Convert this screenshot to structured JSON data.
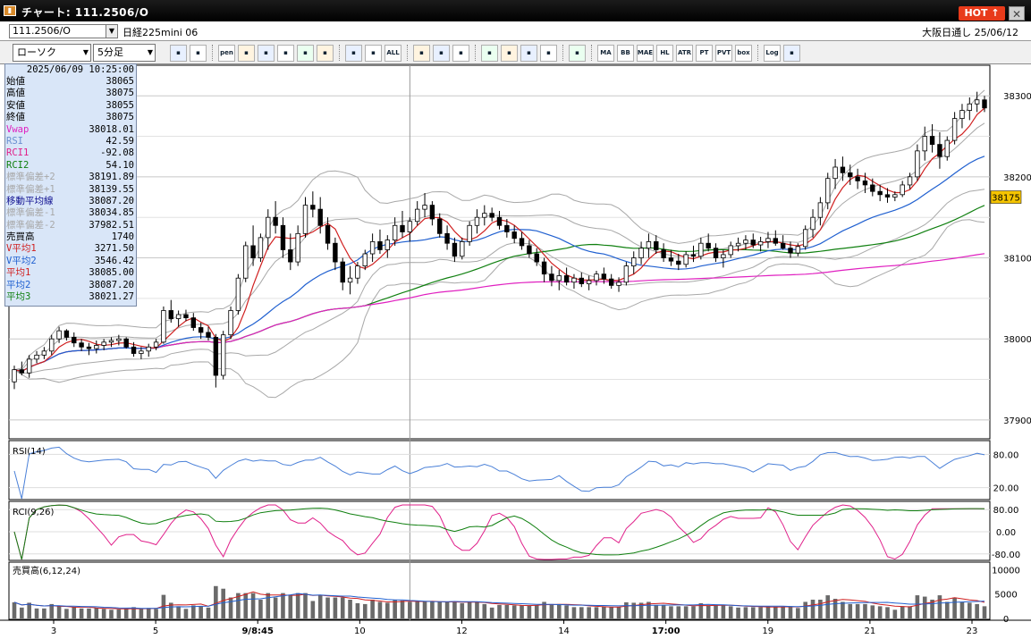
{
  "window": {
    "title": "チャート: 111.2506/O",
    "icon_name": "chart-app-icon",
    "hot_label": "HOT ↑",
    "close_label": "✕"
  },
  "info_bar": {
    "symbol": "111.2506/O",
    "instrument": "日経225mini 06",
    "session": "大阪日通し  25/06/12"
  },
  "toolbar": {
    "chart_type": "ローソク",
    "interval": "5分足",
    "buttons": [
      "zoom-in",
      "window",
      "pen",
      "pointer",
      "cursor",
      "undo",
      "notes",
      "trash",
      "candle-view",
      "bar-view",
      "ALL",
      "settings",
      "brush",
      "color",
      "download",
      "search",
      "grid",
      "chart-mode",
      "info",
      "MA",
      "BB",
      "MAE",
      "HL",
      "ATR",
      "PT",
      "PVT",
      "box",
      "Log",
      "export"
    ]
  },
  "data_window": {
    "datetime": "2025/06/09  10:25:00",
    "rows": [
      {
        "label": "始値",
        "value": "38065",
        "color": "#000000"
      },
      {
        "label": "高値",
        "value": "38075",
        "color": "#000000"
      },
      {
        "label": "安値",
        "value": "38055",
        "color": "#000000"
      },
      {
        "label": "終値",
        "value": "38075",
        "color": "#000000"
      },
      {
        "label": "Vwap",
        "value": "38018.01",
        "color": "#e020c0"
      },
      {
        "label": "RSI",
        "value": "42.59",
        "color": "#6a8fd0"
      },
      {
        "label": "RCI1",
        "value": "-92.08",
        "color": "#e0208a"
      },
      {
        "label": "RCI2",
        "value": "54.10",
        "color": "#108010"
      },
      {
        "label": "標準偏差+2",
        "value": "38191.89",
        "color": "#a8a8a8"
      },
      {
        "label": "標準偏差+1",
        "value": "38139.55",
        "color": "#a8a8a8"
      },
      {
        "label": "移動平均線",
        "value": "38087.20",
        "color": "#101090"
      },
      {
        "label": "標準偏差-1",
        "value": "38034.85",
        "color": "#a8a8a8"
      },
      {
        "label": "標準偏差-2",
        "value": "37982.51",
        "color": "#a8a8a8"
      },
      {
        "label": "売買高",
        "value": "1740",
        "color": "#000000"
      },
      {
        "label": "V平均1",
        "value": "3271.50",
        "color": "#d02020"
      },
      {
        "label": "V平均2",
        "value": "3546.42",
        "color": "#2060d0"
      },
      {
        "label": "平均1",
        "value": "38085.00",
        "color": "#d02020"
      },
      {
        "label": "平均2",
        "value": "38087.20",
        "color": "#2060d0"
      },
      {
        "label": "平均3",
        "value": "38021.27",
        "color": "#108010"
      }
    ]
  },
  "chart_data": [
    {
      "type": "candlestick",
      "title": "",
      "y_ticks": [
        38300,
        38200,
        38100,
        38000,
        37900
      ],
      "ylim": [
        37880,
        38330
      ],
      "last_price": "38175",
      "x_tick_labels": [
        "3",
        "5",
        "9/8:45",
        "10",
        "12",
        "14",
        "17:00",
        "19",
        "21",
        "23"
      ],
      "candles": [
        [
          37947,
          37967,
          37938,
          37962
        ],
        [
          37962,
          37972,
          37955,
          37958
        ],
        [
          37958,
          37980,
          37952,
          37975
        ],
        [
          37975,
          37985,
          37970,
          37980
        ],
        [
          37980,
          37990,
          37975,
          37985
        ],
        [
          37985,
          38005,
          37980,
          38000
        ],
        [
          38000,
          38015,
          37995,
          38010
        ],
        [
          38010,
          38012,
          37998,
          38002
        ],
        [
          38002,
          38008,
          37990,
          37995
        ],
        [
          37995,
          38000,
          37985,
          37990
        ],
        [
          37990,
          37995,
          37980,
          37988
        ],
        [
          37988,
          37998,
          37982,
          37992
        ],
        [
          37992,
          38000,
          37986,
          37996
        ],
        [
          37996,
          38002,
          37990,
          37998
        ],
        [
          37998,
          38005,
          37992,
          38000
        ],
        [
          38000,
          38002,
          37988,
          37990
        ],
        [
          37990,
          37996,
          37978,
          37982
        ],
        [
          37982,
          37990,
          37975,
          37985
        ],
        [
          37985,
          37994,
          37978,
          37990
        ],
        [
          37990,
          38000,
          37986,
          37996
        ],
        [
          37996,
          38040,
          37994,
          38035
        ],
        [
          38035,
          38048,
          38020,
          38025
        ],
        [
          38025,
          38035,
          38015,
          38030
        ],
        [
          38030,
          38036,
          38022,
          38026
        ],
        [
          38026,
          38032,
          38010,
          38014
        ],
        [
          38014,
          38020,
          38000,
          38008
        ],
        [
          38008,
          38015,
          37998,
          38002
        ],
        [
          38002,
          38006,
          37940,
          37955
        ],
        [
          37955,
          38010,
          37950,
          38005
        ],
        [
          38005,
          38040,
          38000,
          38035
        ],
        [
          38035,
          38080,
          38030,
          38075
        ],
        [
          38075,
          38120,
          38070,
          38115
        ],
        [
          38115,
          38140,
          38090,
          38100
        ],
        [
          38100,
          38130,
          38095,
          38125
        ],
        [
          38125,
          38160,
          38110,
          38150
        ],
        [
          38150,
          38170,
          38130,
          38140
        ],
        [
          38140,
          38150,
          38100,
          38110
        ],
        [
          38110,
          38130,
          38085,
          38095
        ],
        [
          38095,
          38140,
          38090,
          38130
        ],
        [
          38130,
          38175,
          38125,
          38165
        ],
        [
          38165,
          38182,
          38150,
          38160
        ],
        [
          38160,
          38175,
          38130,
          38140
        ],
        [
          38140,
          38150,
          38110,
          38118
        ],
        [
          38118,
          38125,
          38085,
          38095
        ],
        [
          38095,
          38100,
          38060,
          38070
        ],
        [
          38070,
          38090,
          38055,
          38075
        ],
        [
          38075,
          38095,
          38068,
          38090
        ],
        [
          38090,
          38110,
          38085,
          38105
        ],
        [
          38105,
          38130,
          38095,
          38120
        ],
        [
          38120,
          38135,
          38105,
          38110
        ],
        [
          38110,
          38128,
          38100,
          38122
        ],
        [
          38122,
          38150,
          38115,
          38140
        ],
        [
          38140,
          38158,
          38125,
          38132
        ],
        [
          38132,
          38150,
          38120,
          38145
        ],
        [
          38145,
          38170,
          38140,
          38160
        ],
        [
          38160,
          38180,
          38150,
          38165
        ],
        [
          38165,
          38170,
          38140,
          38148
        ],
        [
          38148,
          38155,
          38125,
          38130
        ],
        [
          38130,
          38140,
          38110,
          38118
        ],
        [
          38118,
          38125,
          38095,
          38102
        ],
        [
          38102,
          38125,
          38098,
          38120
        ],
        [
          38120,
          38145,
          38115,
          38140
        ],
        [
          38140,
          38160,
          38130,
          38150
        ],
        [
          38150,
          38165,
          38140,
          38155
        ],
        [
          38155,
          38162,
          38145,
          38150
        ],
        [
          38150,
          38158,
          38135,
          38140
        ],
        [
          38140,
          38148,
          38125,
          38132
        ],
        [
          38132,
          38140,
          38118,
          38124
        ],
        [
          38124,
          38132,
          38110,
          38115
        ],
        [
          38115,
          38122,
          38100,
          38105
        ],
        [
          38105,
          38112,
          38090,
          38095
        ],
        [
          38095,
          38100,
          38070,
          38080
        ],
        [
          38080,
          38090,
          38065,
          38072
        ],
        [
          38072,
          38085,
          38060,
          38078
        ],
        [
          38078,
          38088,
          38066,
          38070
        ],
        [
          38070,
          38080,
          38062,
          38075
        ],
        [
          38075,
          38082,
          38064,
          38068
        ],
        [
          38068,
          38078,
          38060,
          38072
        ],
        [
          38072,
          38084,
          38066,
          38080
        ],
        [
          38080,
          38088,
          38068,
          38074
        ],
        [
          38074,
          38080,
          38062,
          38066
        ],
        [
          38066,
          38076,
          38058,
          38070
        ],
        [
          38070,
          38095,
          38066,
          38090
        ],
        [
          38090,
          38108,
          38080,
          38100
        ],
        [
          38100,
          38120,
          38092,
          38112
        ],
        [
          38112,
          38130,
          38100,
          38120
        ],
        [
          38120,
          38128,
          38105,
          38110
        ],
        [
          38110,
          38118,
          38095,
          38100
        ],
        [
          38100,
          38110,
          38090,
          38096
        ],
        [
          38096,
          38105,
          38085,
          38092
        ],
        [
          38092,
          38108,
          38088,
          38104
        ],
        [
          38104,
          38115,
          38095,
          38102
        ],
        [
          38102,
          38125,
          38098,
          38118
        ],
        [
          38118,
          38130,
          38108,
          38112
        ],
        [
          38112,
          38118,
          38095,
          38100
        ],
        [
          38100,
          38110,
          38088,
          38104
        ],
        [
          38104,
          38120,
          38100,
          38115
        ],
        [
          38115,
          38125,
          38108,
          38118
        ],
        [
          38118,
          38128,
          38110,
          38122
        ],
        [
          38122,
          38130,
          38112,
          38116
        ],
        [
          38116,
          38126,
          38108,
          38120
        ],
        [
          38120,
          38132,
          38112,
          38124
        ],
        [
          38124,
          38134,
          38115,
          38118
        ],
        [
          38118,
          38128,
          38110,
          38112
        ],
        [
          38112,
          38120,
          38100,
          38106
        ],
        [
          38106,
          38118,
          38102,
          38114
        ],
        [
          38114,
          38140,
          38110,
          38135
        ],
        [
          38135,
          38160,
          38125,
          38150
        ],
        [
          38150,
          38175,
          38140,
          38168
        ],
        [
          38168,
          38205,
          38160,
          38198
        ],
        [
          38198,
          38222,
          38185,
          38212
        ],
        [
          38212,
          38225,
          38195,
          38205
        ],
        [
          38205,
          38215,
          38190,
          38200
        ],
        [
          38200,
          38210,
          38185,
          38195
        ],
        [
          38195,
          38205,
          38180,
          38190
        ],
        [
          38190,
          38198,
          38176,
          38182
        ],
        [
          38182,
          38190,
          38170,
          38178
        ],
        [
          38178,
          38186,
          38168,
          38175
        ],
        [
          38175,
          38182,
          38170,
          38178
        ],
        [
          38178,
          38195,
          38175,
          38190
        ],
        [
          38190,
          38205,
          38185,
          38200
        ],
        [
          38200,
          38240,
          38195,
          38232
        ],
        [
          38232,
          38262,
          38220,
          38250
        ],
        [
          38250,
          38265,
          38230,
          38240
        ],
        [
          38240,
          38255,
          38210,
          38225
        ],
        [
          38225,
          38250,
          38220,
          38245
        ],
        [
          38245,
          38280,
          38240,
          38272
        ],
        [
          38272,
          38290,
          38260,
          38282
        ],
        [
          38282,
          38298,
          38270,
          38290
        ],
        [
          38290,
          38305,
          38280,
          38295
        ],
        [
          38295,
          38300,
          38280,
          38285
        ]
      ],
      "moving_averages": {
        "ma1": {
          "name": "平均1",
          "color": "#d02020"
        },
        "ma2": {
          "name": "平均2",
          "color": "#2060d0"
        },
        "ma3": {
          "name": "平均3",
          "color": "#108010"
        },
        "vwap": {
          "name": "Vwap",
          "color": "#e020c0"
        },
        "bands_color": "#a8a8a8"
      }
    },
    {
      "type": "line",
      "title": "RSI(14)",
      "y_ticks": [
        "80.00",
        "20.00"
      ],
      "ylim": [
        0,
        100
      ],
      "series": [
        {
          "name": "RSI",
          "color": "#4a80d8"
        }
      ]
    },
    {
      "type": "line",
      "title": "RCI(9,26)",
      "y_ticks": [
        "80.00",
        "0.00",
        "-80.00"
      ],
      "ylim": [
        -100,
        100
      ],
      "series": [
        {
          "name": "RCI1",
          "color": "#e0208a"
        },
        {
          "name": "RCI2",
          "color": "#108010"
        }
      ]
    },
    {
      "type": "bar",
      "title": "売買高(6,12,24)",
      "y_ticks": [
        "10000",
        "5000",
        "0"
      ],
      "ylim": [
        0,
        11000
      ],
      "series": [
        {
          "name": "売買高",
          "color": "#6a6a6a"
        },
        {
          "name": "V平均1",
          "color": "#d02020"
        },
        {
          "name": "V平均2",
          "color": "#2060d0"
        }
      ]
    }
  ]
}
